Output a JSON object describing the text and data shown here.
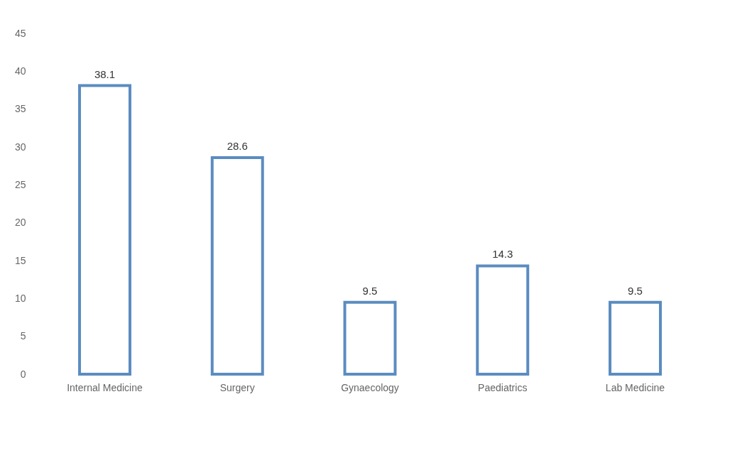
{
  "chart_data": {
    "type": "bar",
    "categories": [
      "Internal Medicine",
      "Surgery",
      "Gynaecology",
      "Paediatrics",
      "Lab Medicine"
    ],
    "values": [
      38.1,
      28.6,
      9.5,
      14.3,
      9.5
    ],
    "color": "#5b8cc0",
    "ylim": [
      0,
      45
    ],
    "yticks": [
      0,
      5,
      10,
      15,
      20,
      25,
      30,
      35,
      40,
      45
    ],
    "grid": false,
    "data_labels": true
  }
}
